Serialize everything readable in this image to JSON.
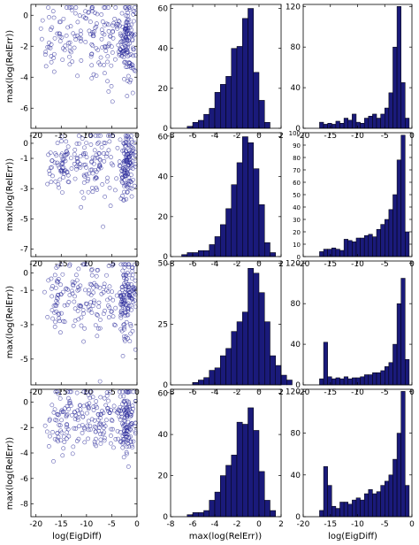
{
  "labels": {
    "ylabel": "max(log(RelErr))",
    "xlabel_col1": "log(EigDiff)",
    "xlabel_col2": "max(log(RelErr))",
    "xlabel_col3": "log(EigDiff)"
  },
  "style": {
    "fill": "#1a1a7a",
    "marker": "#2a2a9a"
  },
  "chart_data": [
    {
      "row": 1,
      "col": 1,
      "type": "scatter",
      "xlim": [
        -21,
        0
      ],
      "ylim": [
        -7.3,
        0.7
      ],
      "xticks": [
        -20,
        -15,
        -10,
        -5,
        0
      ],
      "yticks": [
        0,
        -2,
        -4,
        -6
      ],
      "clusters": [
        {
          "cx": -2,
          "cy": -1.5,
          "sx": 0.8,
          "sy": 1.3,
          "n": 120
        },
        {
          "cx": -6,
          "cy": -1.6,
          "sx": 2.5,
          "sy": 1.3,
          "n": 80
        },
        {
          "cx": -12,
          "cy": -1.4,
          "sx": 2.5,
          "sy": 1.1,
          "n": 50
        },
        {
          "cx": -16.5,
          "cy": -1.7,
          "sx": 1.5,
          "sy": 1.2,
          "n": 30
        }
      ]
    },
    {
      "row": 1,
      "col": 2,
      "type": "bar",
      "xlim": [
        -8,
        2
      ],
      "ylim": [
        0,
        62
      ],
      "xticks": [
        -8,
        -6,
        -4,
        -2,
        0,
        2
      ],
      "yticks": [
        0,
        20,
        40,
        60
      ],
      "bin_start": -6.5,
      "bin_width": 0.5,
      "values": [
        1,
        3,
        4,
        7,
        10,
        18,
        22,
        26,
        40,
        41,
        55,
        60,
        28,
        14,
        3
      ]
    },
    {
      "row": 1,
      "col": 3,
      "type": "bar",
      "xlim": [
        -20,
        0
      ],
      "ylim": [
        0,
        122
      ],
      "xticks": [
        -20,
        -15,
        -10,
        -5,
        0
      ],
      "yticks": [
        0,
        40,
        80,
        120
      ],
      "bin_start": -17,
      "bin_width": 0.75,
      "values": [
        6,
        4,
        5,
        4,
        7,
        5,
        10,
        8,
        14,
        6,
        5,
        10,
        12,
        14,
        10,
        14,
        20,
        35,
        80,
        120,
        45,
        10
      ]
    },
    {
      "row": 2,
      "col": 1,
      "type": "scatter",
      "xlim": [
        -21,
        0
      ],
      "ylim": [
        -7.5,
        0.7
      ],
      "xticks": [
        -20,
        -15,
        -10,
        -5,
        0
      ],
      "yticks": [
        0,
        -1,
        -3,
        -5,
        -7
      ],
      "clusters": [
        {
          "cx": -2,
          "cy": -1.5,
          "sx": 0.8,
          "sy": 1.2,
          "n": 120
        },
        {
          "cx": -7,
          "cy": -1.5,
          "sx": 2.5,
          "sy": 1.2,
          "n": 80
        },
        {
          "cx": -12,
          "cy": -1.3,
          "sx": 2.5,
          "sy": 1.0,
          "n": 50
        },
        {
          "cx": -15.5,
          "cy": -1.3,
          "sx": 1.2,
          "sy": 0.9,
          "n": 40
        }
      ]
    },
    {
      "row": 2,
      "col": 2,
      "type": "bar",
      "xlim": [
        -8,
        2
      ],
      "ylim": [
        0,
        62
      ],
      "xticks": [
        -8,
        -6,
        -4,
        -2,
        0,
        2
      ],
      "yticks": [
        0,
        20,
        40,
        60
      ],
      "bin_start": -7,
      "bin_width": 0.5,
      "values": [
        1,
        2,
        2,
        3,
        3,
        6,
        10,
        16,
        24,
        36,
        47,
        60,
        57,
        44,
        26,
        7,
        2
      ]
    },
    {
      "row": 2,
      "col": 3,
      "type": "bar",
      "xlim": [
        -20,
        0
      ],
      "ylim": [
        0,
        100
      ],
      "xticks": [
        -20,
        -15,
        -10,
        -5,
        0
      ],
      "yticks": [
        0,
        10,
        20,
        30,
        40,
        50,
        60,
        70,
        80,
        90,
        100
      ],
      "bin_start": -17,
      "bin_width": 0.75,
      "values": [
        4,
        6,
        6,
        7,
        6,
        5,
        14,
        13,
        12,
        15,
        15,
        17,
        18,
        16,
        22,
        26,
        30,
        38,
        50,
        78,
        98,
        20
      ]
    },
    {
      "row": 3,
      "col": 1,
      "type": "scatter",
      "xlim": [
        -21,
        0
      ],
      "ylim": [
        -6.5,
        0.7
      ],
      "xticks": [
        -20,
        -15,
        -10,
        -5,
        0
      ],
      "yticks": [
        0,
        -1,
        -3,
        -5
      ],
      "clusters": [
        {
          "cx": -2,
          "cy": -1.4,
          "sx": 0.8,
          "sy": 1.1,
          "n": 120
        },
        {
          "cx": -7,
          "cy": -1.5,
          "sx": 2.5,
          "sy": 1.2,
          "n": 70
        },
        {
          "cx": -12,
          "cy": -1.2,
          "sx": 2.5,
          "sy": 1.0,
          "n": 50
        },
        {
          "cx": -15.5,
          "cy": -1.5,
          "sx": 1.2,
          "sy": 1.1,
          "n": 40
        }
      ]
    },
    {
      "row": 3,
      "col": 2,
      "type": "bar",
      "xlim": [
        -8,
        2
      ],
      "ylim": [
        0,
        51
      ],
      "xticks": [
        -8,
        -6,
        -4,
        -2,
        0,
        2
      ],
      "yticks": [
        0,
        25,
        50
      ],
      "bin_start": -6,
      "bin_width": 0.5,
      "values": [
        1,
        2,
        3,
        6,
        7,
        12,
        15,
        22,
        26,
        30,
        48,
        46,
        38,
        26,
        12,
        8,
        4,
        2
      ]
    },
    {
      "row": 3,
      "col": 3,
      "type": "bar",
      "xlim": [
        -20,
        0
      ],
      "ylim": [
        0,
        122
      ],
      "xticks": [
        -20,
        -15,
        -10,
        -5,
        0
      ],
      "yticks": [
        0,
        40,
        80,
        120
      ],
      "bin_start": -17,
      "bin_width": 0.75,
      "values": [
        6,
        42,
        8,
        6,
        7,
        6,
        8,
        6,
        7,
        7,
        8,
        10,
        10,
        12,
        12,
        14,
        18,
        22,
        40,
        80,
        105,
        25
      ]
    },
    {
      "row": 4,
      "col": 1,
      "type": "scatter",
      "xlim": [
        -21,
        0
      ],
      "ylim": [
        -9,
        1
      ],
      "xticks": [
        -20,
        -15,
        -10,
        -5,
        0
      ],
      "yticks": [
        0,
        -2,
        -4,
        -6,
        -8
      ],
      "clusters": [
        {
          "cx": -2,
          "cy": -1.5,
          "sx": 0.8,
          "sy": 1.3,
          "n": 120
        },
        {
          "cx": -7,
          "cy": -1.6,
          "sx": 2.5,
          "sy": 1.3,
          "n": 80
        },
        {
          "cx": -12,
          "cy": -1.4,
          "sx": 2.5,
          "sy": 1.1,
          "n": 50
        },
        {
          "cx": -15.5,
          "cy": -2.0,
          "sx": 1.2,
          "sy": 1.5,
          "n": 45
        }
      ]
    },
    {
      "row": 4,
      "col": 2,
      "type": "bar",
      "xlim": [
        -8,
        2
      ],
      "ylim": [
        0,
        62
      ],
      "xticks": [
        -8,
        -6,
        -4,
        -2,
        0,
        2
      ],
      "yticks": [
        0,
        20,
        40,
        60
      ],
      "bin_start": -6.5,
      "bin_width": 0.5,
      "values": [
        1,
        2,
        2,
        3,
        8,
        12,
        20,
        25,
        30,
        46,
        45,
        53,
        42,
        22,
        8,
        3
      ]
    },
    {
      "row": 4,
      "col": 3,
      "type": "bar",
      "xlim": [
        -20,
        0
      ],
      "ylim": [
        0,
        122
      ],
      "xticks": [
        -20,
        -15,
        -10,
        -5,
        0
      ],
      "yticks": [
        0,
        40,
        80,
        120
      ],
      "bin_start": -17,
      "bin_width": 0.75,
      "values": [
        6,
        48,
        30,
        10,
        8,
        14,
        14,
        12,
        16,
        18,
        16,
        22,
        26,
        22,
        24,
        30,
        34,
        40,
        55,
        80,
        120,
        30
      ]
    }
  ]
}
